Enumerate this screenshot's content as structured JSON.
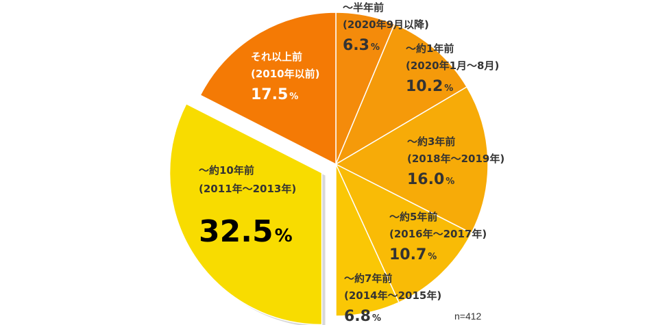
{
  "chart_data": {
    "type": "pie",
    "unit": "%",
    "note": "n=412",
    "slices": [
      {
        "label_line1": "～半年前",
        "label_line2": "(2020年9月以降)",
        "value": 6.3,
        "value_text": "6.3",
        "color": "#f48b0b"
      },
      {
        "label_line1": "～約1年前",
        "label_line2": "(2020年1月～8月)",
        "value": 10.2,
        "value_text": "10.2",
        "color": "#f59a0a"
      },
      {
        "label_line1": "～約3年前",
        "label_line2": "(2018年～2019年)",
        "value": 16.0,
        "value_text": "16.0",
        "color": "#f7ab08"
      },
      {
        "label_line1": "～約5年前",
        "label_line2": "(2016年～2017年)",
        "value": 10.7,
        "value_text": "10.7",
        "color": "#f9bb06"
      },
      {
        "label_line1": "～約7年前",
        "label_line2": "(2014年～2015年)",
        "value": 6.8,
        "value_text": "6.8",
        "color": "#fac705"
      },
      {
        "label_line1": "～約10年前",
        "label_line2": "(2011年～2013年)",
        "value": 32.5,
        "value_text": "32.5",
        "color": "#f8dc00",
        "exploded": true
      },
      {
        "label_line1": "それ以上前",
        "label_line2": "(2010年以前)",
        "value": 17.5,
        "value_text": "17.5",
        "color": "#f47a05"
      }
    ]
  }
}
